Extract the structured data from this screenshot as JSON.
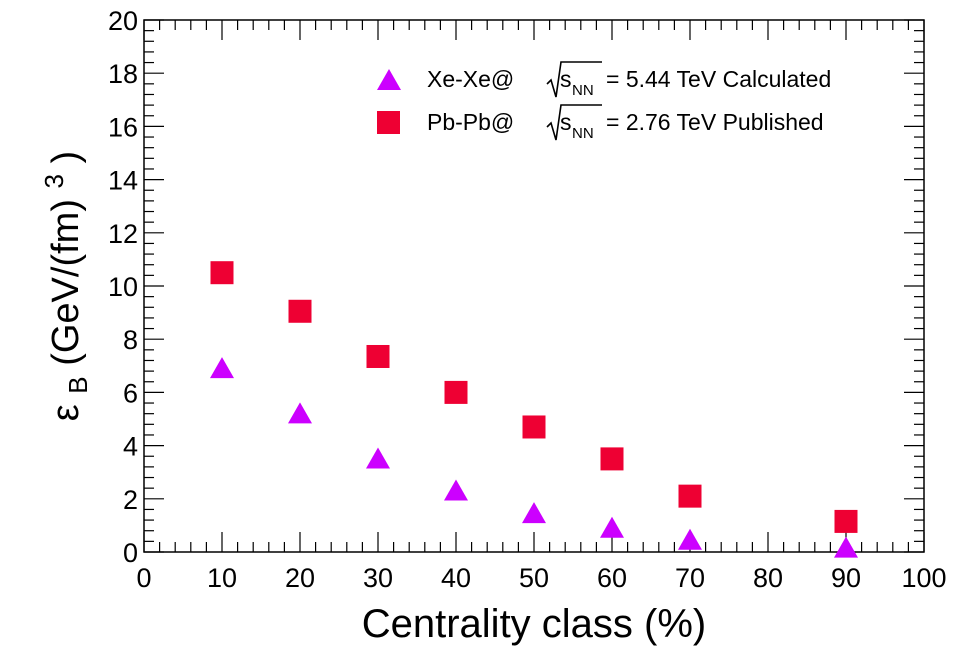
{
  "chart_data": {
    "type": "scatter",
    "xlabel": "Centrality class (%)",
    "ylabel": {
      "symbol": "ε",
      "subscript": "B",
      "units_open": " (GeV/(fm)",
      "power": "3",
      "units_close": ")"
    },
    "xlim": [
      0,
      100
    ],
    "ylim": [
      0,
      20
    ],
    "x_major_ticks": [
      0,
      10,
      20,
      30,
      40,
      50,
      60,
      70,
      80,
      90,
      100
    ],
    "y_major_ticks": [
      0,
      2,
      4,
      6,
      8,
      10,
      12,
      14,
      16,
      18,
      20
    ],
    "grid": false,
    "legend_position": "top-right",
    "series": [
      {
        "name": "Xe-Xe@ √sNN = 5.44 TeV Calculated",
        "label_prefix": "Xe-Xe@",
        "sqrt_s_sub": "NN",
        "energy_text": "= 5.44 TeV Calculated",
        "marker": "triangle",
        "color": "#cc00ff",
        "x": [
          10,
          20,
          30,
          40,
          50,
          60,
          70,
          90
        ],
        "y": [
          6.8,
          5.1,
          3.4,
          2.2,
          1.35,
          0.8,
          0.35,
          0.05
        ]
      },
      {
        "name": "Pb-Pb@ √sNN = 2.76 TeV Published",
        "label_prefix": "Pb-Pb@",
        "sqrt_s_sub": "NN",
        "energy_text": "= 2.76 TeV Published",
        "marker": "square",
        "color": "#ee0033",
        "x": [
          10,
          20,
          30,
          40,
          50,
          60,
          70,
          90
        ],
        "y": [
          10.5,
          9.05,
          7.35,
          6.0,
          4.7,
          3.5,
          2.1,
          1.15
        ]
      }
    ]
  }
}
